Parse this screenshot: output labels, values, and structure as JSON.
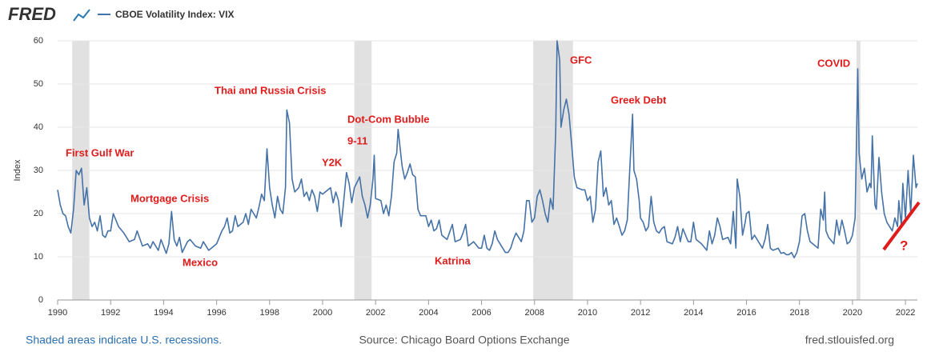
{
  "chart_data": {
    "type": "line",
    "logo": "FRED",
    "ylabel": "Index",
    "footer_left": "Shaded areas indicate U.S. recessions.",
    "footer_center": "Source: Chicago Board Options Exchange",
    "footer_right": "fred.stlouisfed.org",
    "xlim": [
      1990,
      2022.45
    ],
    "ylim": [
      0,
      60
    ],
    "xticks": [
      1990,
      1992,
      1994,
      1996,
      1998,
      2000,
      2002,
      2004,
      2006,
      2008,
      2010,
      2012,
      2014,
      2016,
      2018,
      2020,
      2022
    ],
    "yticks": [
      0,
      10,
      20,
      30,
      40,
      50,
      60
    ],
    "grid": true,
    "recessions": [
      [
        1990.55,
        1991.2
      ],
      [
        2001.2,
        2001.85
      ],
      [
        2007.95,
        2009.45
      ],
      [
        2020.15,
        2020.3
      ]
    ],
    "annotations": [
      "First Gulf War",
      "Mortgage Crisis",
      "Mexico",
      "Thai and Russia Crisis",
      "Y2K",
      "Dot-Com Bubble",
      "9-11",
      "Katrina",
      "GFC",
      "Greek Debt",
      "COVID",
      "?"
    ],
    "x": [
      1990.0,
      1990.1,
      1990.2,
      1990.3,
      1990.4,
      1990.5,
      1990.6,
      1990.7,
      1990.8,
      1990.9,
      1991.0,
      1991.1,
      1991.2,
      1991.3,
      1991.4,
      1991.5,
      1991.6,
      1991.7,
      1991.8,
      1991.9,
      1992.0,
      1992.1,
      1992.3,
      1992.5,
      1992.7,
      1992.9,
      1993.0,
      1993.2,
      1993.4,
      1993.5,
      1993.6,
      1993.8,
      1993.9,
      1994.1,
      1994.2,
      1994.3,
      1994.4,
      1994.5,
      1994.6,
      1994.7,
      1994.9,
      1995.0,
      1995.2,
      1995.4,
      1995.5,
      1995.7,
      1995.9,
      1996.0,
      1996.2,
      1996.3,
      1996.4,
      1996.5,
      1996.6,
      1996.7,
      1996.8,
      1997.0,
      1997.1,
      1997.2,
      1997.3,
      1997.4,
      1997.5,
      1997.6,
      1997.7,
      1997.8,
      1997.9,
      1998.0,
      1998.1,
      1998.2,
      1998.3,
      1998.4,
      1998.5,
      1998.6,
      1998.65,
      1998.75,
      1998.85,
      1998.95,
      1999.1,
      1999.2,
      1999.3,
      1999.4,
      1999.5,
      1999.6,
      1999.7,
      1999.8,
      1999.9,
      2000.0,
      2000.1,
      2000.3,
      2000.4,
      2000.5,
      2000.6,
      2000.7,
      2000.8,
      2000.9,
      2001.0,
      2001.1,
      2001.2,
      2001.4,
      2001.5,
      2001.6,
      2001.7,
      2001.8,
      2001.9,
      2001.95,
      2002.0,
      2002.2,
      2002.3,
      2002.4,
      2002.5,
      2002.6,
      2002.7,
      2002.8,
      2002.85,
      2003.0,
      2003.1,
      2003.2,
      2003.3,
      2003.4,
      2003.5,
      2003.6,
      2003.7,
      2003.9,
      2004.0,
      2004.1,
      2004.2,
      2004.3,
      2004.4,
      2004.5,
      2004.7,
      2004.9,
      2005.0,
      2005.2,
      2005.3,
      2005.4,
      2005.5,
      2005.7,
      2005.9,
      2006.0,
      2006.1,
      2006.2,
      2006.3,
      2006.4,
      2006.5,
      2006.6,
      2006.8,
      2006.9,
      2007.0,
      2007.1,
      2007.2,
      2007.3,
      2007.5,
      2007.6,
      2007.7,
      2007.8,
      2007.9,
      2008.0,
      2008.1,
      2008.2,
      2008.3,
      2008.4,
      2008.5,
      2008.6,
      2008.7,
      2008.8,
      2008.85,
      2008.95,
      2009.0,
      2009.1,
      2009.2,
      2009.3,
      2009.4,
      2009.5,
      2009.6,
      2009.8,
      2009.9,
      2010.0,
      2010.1,
      2010.2,
      2010.3,
      2010.4,
      2010.5,
      2010.6,
      2010.7,
      2010.8,
      2010.9,
      2011.0,
      2011.1,
      2011.2,
      2011.3,
      2011.4,
      2011.5,
      2011.6,
      2011.7,
      2011.75,
      2011.85,
      2011.95,
      2012.0,
      2012.1,
      2012.2,
      2012.3,
      2012.4,
      2012.5,
      2012.6,
      2012.7,
      2012.8,
      2012.9,
      2013.0,
      2013.2,
      2013.3,
      2013.4,
      2013.5,
      2013.6,
      2013.8,
      2013.9,
      2014.0,
      2014.1,
      2014.3,
      2014.5,
      2014.6,
      2014.7,
      2014.8,
      2014.9,
      2015.0,
      2015.1,
      2015.3,
      2015.4,
      2015.5,
      2015.6,
      2015.65,
      2015.75,
      2015.85,
      2015.95,
      2016.0,
      2016.1,
      2016.2,
      2016.3,
      2016.4,
      2016.5,
      2016.6,
      2016.7,
      2016.8,
      2016.9,
      2017.0,
      2017.2,
      2017.3,
      2017.4,
      2017.5,
      2017.6,
      2017.7,
      2017.8,
      2017.9,
      2018.0,
      2018.1,
      2018.2,
      2018.3,
      2018.4,
      2018.5,
      2018.6,
      2018.7,
      2018.8,
      2018.9,
      2018.95,
      2019.0,
      2019.1,
      2019.3,
      2019.4,
      2019.5,
      2019.6,
      2019.7,
      2019.8,
      2019.9,
      2020.0,
      2020.1,
      2020.2,
      2020.25,
      2020.35,
      2020.45,
      2020.55,
      2020.65,
      2020.7,
      2020.75,
      2020.85,
      2020.9,
      2021.0,
      2021.1,
      2021.2,
      2021.3,
      2021.4,
      2021.5,
      2021.6,
      2021.7,
      2021.75,
      2021.85,
      2021.9,
      2022.0,
      2022.1,
      2022.2,
      2022.3,
      2022.4,
      2022.45
    ],
    "series": [
      {
        "name": "CBOE Volatility Index: VIX",
        "color": "#4572a7",
        "values": [
          25.5,
          22,
          20,
          19.5,
          17,
          15.5,
          21,
          30,
          29,
          30.5,
          22,
          26,
          19,
          17,
          18,
          16,
          19.5,
          15,
          14.5,
          16,
          16,
          20,
          17,
          15.5,
          13.5,
          14,
          16,
          12.5,
          13,
          12,
          13.5,
          11.5,
          14,
          10.8,
          13,
          20.5,
          14,
          12.5,
          14.5,
          11,
          13.5,
          14,
          12.5,
          12,
          13.5,
          11.5,
          12.5,
          13,
          16,
          17,
          19,
          15.5,
          16,
          19.5,
          17,
          18,
          20,
          17.5,
          21,
          20,
          19,
          21.5,
          24.5,
          23,
          35,
          26,
          22,
          19,
          24,
          21,
          20,
          26,
          44,
          41,
          28,
          25,
          26,
          28,
          24,
          25,
          23,
          25.5,
          24,
          20.5,
          25,
          24.5,
          25,
          26,
          22.5,
          25,
          23,
          17,
          23,
          29.5,
          27,
          22.5,
          26,
          28.5,
          24,
          22,
          19,
          22,
          28,
          33.5,
          23.5,
          23,
          20,
          22,
          19.5,
          24,
          32,
          34,
          39.5,
          31,
          28,
          29.5,
          31.5,
          29,
          28.5,
          21,
          19.5,
          19.5,
          17,
          18.5,
          16,
          16.5,
          18.5,
          15,
          14,
          17.5,
          13.5,
          14,
          15.5,
          17.5,
          12.5,
          13.5,
          12,
          12,
          15,
          12,
          11.5,
          13,
          16,
          14,
          12,
          11,
          11,
          12,
          14,
          15.5,
          13.5,
          16,
          23,
          23,
          18,
          19,
          24,
          25.5,
          23,
          20,
          18,
          23.5,
          21,
          39,
          60,
          55.5,
          40,
          44,
          46.5,
          43,
          36,
          28.5,
          26,
          25.5,
          25.5,
          23,
          24,
          18,
          21,
          32,
          34.5,
          24,
          26,
          22,
          23,
          17.5,
          19,
          17,
          15,
          16,
          18.5,
          31,
          43,
          30,
          28,
          23,
          19,
          18,
          16,
          17,
          24,
          18,
          16,
          15.5,
          16.5,
          17,
          13.5,
          13,
          14.5,
          17,
          13.5,
          16.5,
          13.5,
          13.5,
          18,
          14,
          13,
          11.5,
          16,
          13,
          15,
          19,
          17,
          14,
          14.5,
          13,
          20.5,
          12,
          28,
          24,
          15,
          18,
          20,
          20.5,
          14,
          15,
          14,
          13,
          12,
          14,
          17.5,
          12,
          11.5,
          12,
          10.8,
          11,
          10.5,
          10.5,
          11,
          9.8,
          11,
          13.5,
          19.5,
          20,
          16,
          13.5,
          13,
          12.5,
          12,
          21,
          18.5,
          25,
          16,
          14.5,
          13,
          18.5,
          15,
          18.5,
          16,
          13,
          13.5,
          15,
          19,
          53.5,
          34,
          28,
          30.5,
          25,
          27,
          26,
          38,
          22,
          21,
          33,
          25,
          20,
          18,
          17,
          16,
          19,
          17,
          23,
          17,
          27,
          19,
          30,
          20,
          33.5,
          26,
          27
        ]
      }
    ]
  }
}
